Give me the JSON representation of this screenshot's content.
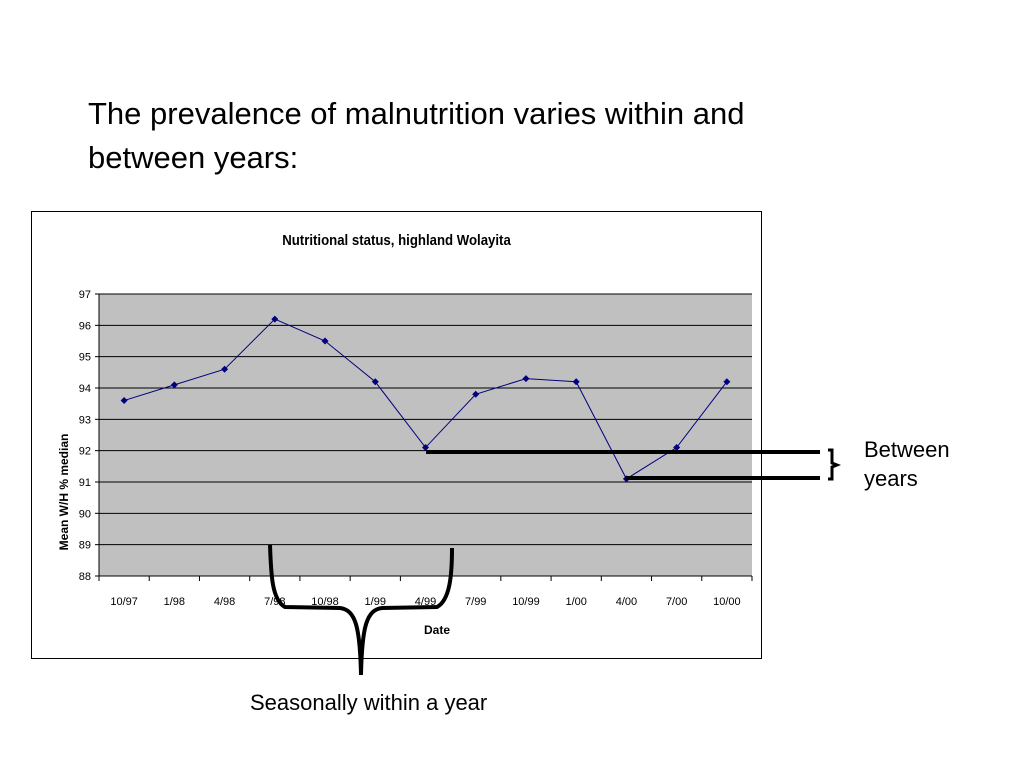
{
  "slide": {
    "title_line1": "The  prevalence of malnutrition varies within and",
    "title_line2": "between years:"
  },
  "chart_data": {
    "type": "line",
    "title": "Nutritional status, highland Wolayita",
    "xlabel": "Date",
    "ylabel": "Mean W/H % median",
    "categories": [
      "10/97",
      "1/98",
      "4/98",
      "7/98",
      "10/98",
      "1/99",
      "4/99",
      "7/99",
      "10/99",
      "1/00",
      "4/00",
      "7/00",
      "10/00"
    ],
    "values": [
      93.6,
      94.1,
      94.6,
      96.2,
      95.5,
      94.2,
      92.1,
      93.8,
      94.3,
      94.2,
      91.1,
      92.1,
      94.2
    ],
    "ylim": [
      88,
      97
    ],
    "yticks": [
      88,
      89,
      90,
      91,
      92,
      93,
      94,
      95,
      96,
      97
    ],
    "grid": true,
    "plot_background": "#c0c0c0",
    "series_color": "#000080",
    "legend": "none"
  },
  "annotations": {
    "between_line1": "Between",
    "between_line2": "years",
    "seasonal": "Seasonally within a year"
  }
}
